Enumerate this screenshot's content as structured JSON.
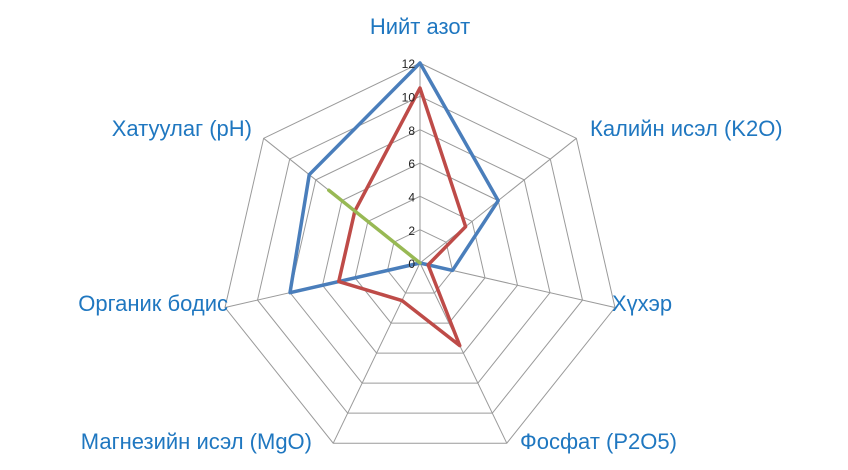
{
  "chart_data": {
    "type": "radar",
    "categories": [
      "Нийт азот",
      "Калийн исэл (K2O)",
      "Хүхэр",
      "Фосфат (P2O5)",
      "Магнезийн исэл (MgO)",
      "Органик бодис",
      "Хатуулаг (pH)"
    ],
    "series": [
      {
        "color": "#4a7ebb",
        "values": [
          12,
          6,
          2,
          0,
          0,
          8,
          8.5
        ]
      },
      {
        "color": "#be4b48",
        "values": [
          10.5,
          3.5,
          0.5,
          5.5,
          2.5,
          5,
          5
        ]
      },
      {
        "color": "#98b954",
        "values": [
          0,
          0,
          0,
          0,
          0,
          0,
          7
        ]
      }
    ],
    "ylim": [
      0,
      12
    ],
    "yticks": [
      0,
      2,
      4,
      6,
      8,
      10,
      12
    ],
    "grid": true
  }
}
